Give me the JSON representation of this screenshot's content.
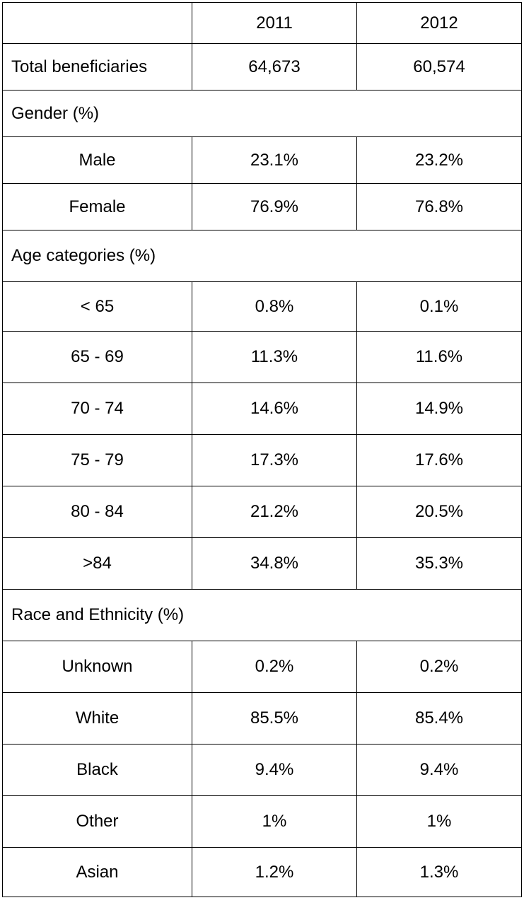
{
  "table": {
    "header": [
      "",
      "2011",
      "2012"
    ],
    "total": {
      "label": "Total beneficiaries",
      "values": [
        "64,673",
        "60,574"
      ]
    },
    "sections": [
      {
        "title": "Gender (%)",
        "rows": [
          {
            "label": "Male",
            "values": [
              "23.1%",
              "23.2%"
            ]
          },
          {
            "label": "Female",
            "values": [
              "76.9%",
              "76.8%"
            ]
          }
        ]
      },
      {
        "title": "Age categories (%)",
        "rows": [
          {
            "label": "< 65",
            "values": [
              "0.8%",
              "0.1%"
            ]
          },
          {
            "label": "65 - 69",
            "values": [
              "11.3%",
              "11.6%"
            ]
          },
          {
            "label": "70 - 74",
            "values": [
              "14.6%",
              "14.9%"
            ]
          },
          {
            "label": "75 - 79",
            "values": [
              "17.3%",
              "17.6%"
            ]
          },
          {
            "label": "80 - 84",
            "values": [
              "21.2%",
              "20.5%"
            ]
          },
          {
            "label": ">84",
            "values": [
              "34.8%",
              "35.3%"
            ]
          }
        ]
      },
      {
        "title": "Race and Ethnicity (%)",
        "rows": [
          {
            "label": "Unknown",
            "values": [
              "0.2%",
              "0.2%"
            ]
          },
          {
            "label": "White",
            "values": [
              "85.5%",
              "85.4%"
            ]
          },
          {
            "label": "Black",
            "values": [
              "9.4%",
              "9.4%"
            ]
          },
          {
            "label": "Other",
            "values": [
              "1%",
              "1%"
            ]
          },
          {
            "label": "Asian",
            "values": [
              "1.2%",
              "1.3%"
            ]
          }
        ]
      }
    ]
  }
}
